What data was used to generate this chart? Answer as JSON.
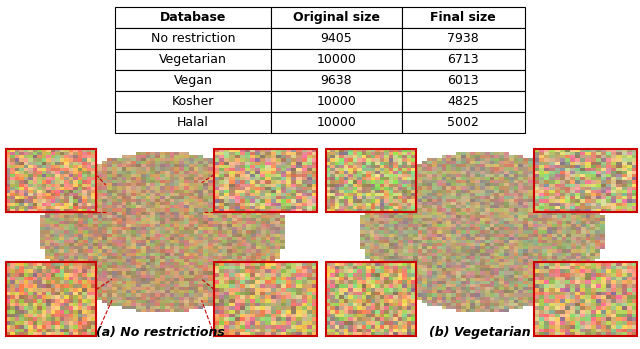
{
  "table_headers": [
    "Database",
    "Original size",
    "Final size"
  ],
  "table_rows": [
    [
      "No restriction",
      "9405",
      "7938"
    ],
    [
      "Vegetarian",
      "10000",
      "6713"
    ],
    [
      "Vegan",
      "9638",
      "6013"
    ],
    [
      "Kosher",
      "10000",
      "4825"
    ],
    [
      "Halal",
      "10000",
      "5002"
    ]
  ],
  "caption_left": "(a) No restrictions",
  "caption_right": "(b) Vegetarian",
  "bg_color": "#ffffff",
  "table_edge_color": "#000000",
  "caption_fontsize": 9,
  "table_fontsize": 9
}
